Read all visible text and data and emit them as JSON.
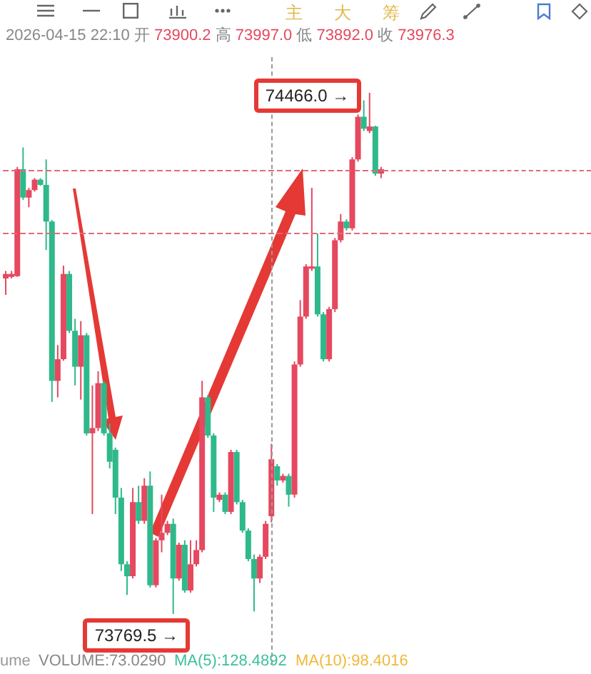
{
  "chart_data": {
    "type": "candlestick",
    "annotations": [
      "2026-04-15 22:10 开 73900.2 高 73997.0 低 73892.0 收 73976.3",
      "主",
      "大",
      "筹",
      "74466.0 →",
      "73769.5 →",
      "ume",
      "VOLUME:73.0290",
      "MA(5):128.4892",
      "MA(10):98.4016"
    ],
    "categories": [
      null,
      null,
      null,
      null,
      null,
      null,
      null,
      null,
      null,
      null,
      null,
      null,
      null,
      null,
      null,
      null,
      null,
      null,
      null,
      null,
      null,
      null,
      null,
      null,
      null,
      null,
      null,
      null,
      null,
      null,
      null,
      null,
      null,
      null,
      null,
      null,
      null,
      null,
      null,
      null,
      null,
      null,
      null,
      null,
      null,
      null,
      null,
      null,
      null,
      null,
      null,
      null,
      null,
      null,
      null,
      null,
      null,
      null,
      null,
      null,
      null,
      null,
      null,
      null,
      null,
      null
    ],
    "ohlc": [
      [
        74218,
        74228,
        74196,
        74224
      ],
      [
        74220,
        74228,
        74218,
        74224
      ],
      [
        74221,
        74367,
        74220,
        74364
      ],
      [
        74364,
        74393,
        74323,
        74326
      ],
      [
        74326,
        74339,
        74313,
        74336
      ],
      [
        74336,
        74352,
        74334,
        74350
      ],
      [
        74350,
        74352,
        74342,
        74343
      ],
      [
        74343,
        74377,
        74256,
        74294
      ],
      [
        74294,
        74296,
        74053,
        74081
      ],
      [
        74081,
        74129,
        74059,
        74110
      ],
      [
        74110,
        74235,
        74108,
        74224
      ],
      [
        74224,
        74228,
        74145,
        74148
      ],
      [
        74148,
        74164,
        74075,
        74100
      ],
      [
        74100,
        74161,
        74056,
        74142
      ],
      [
        74142,
        74145,
        74008,
        74011
      ],
      [
        74011,
        74075,
        73903,
        74018
      ],
      [
        74018,
        74094,
        74014,
        74078
      ],
      [
        74078,
        74081,
        74008,
        74011
      ],
      [
        74011,
        74024,
        73964,
        73973
      ],
      [
        73989,
        73992,
        73903,
        73925
      ],
      [
        73925,
        73938,
        73827,
        73836
      ],
      [
        73836,
        73840,
        73795,
        73820
      ],
      [
        73820,
        73938,
        73817,
        73919
      ],
      [
        73919,
        73941,
        73890,
        73894
      ],
      [
        73894,
        73951,
        73890,
        73941
      ],
      [
        73941,
        73960,
        73805,
        73808
      ],
      [
        73808,
        73871,
        73805,
        73868
      ],
      [
        73868,
        73929,
        73852,
        73878
      ],
      [
        73878,
        73894,
        73875,
        73890
      ],
      [
        73890,
        73897,
        73769.5,
        73817
      ],
      [
        73817,
        73865,
        73814,
        73862
      ],
      [
        73862,
        73868,
        73798,
        73801
      ],
      [
        73801,
        73868,
        73798,
        73836
      ],
      [
        73836,
        73868,
        73833,
        73855
      ],
      [
        73855,
        74081,
        73852,
        74059
      ],
      [
        74059,
        74062,
        74005,
        74008
      ],
      [
        74008,
        74011,
        73906,
        73925
      ],
      [
        73922,
        73932,
        73919,
        73929
      ],
      [
        73929,
        73932,
        73903,
        73906
      ],
      [
        73906,
        73989,
        73903,
        73986
      ],
      [
        73986,
        73989,
        73916,
        73919
      ],
      [
        73919,
        73922,
        73878,
        73881
      ],
      [
        73881,
        73884,
        73840,
        73843
      ],
      [
        73843,
        73849,
        73773,
        73817
      ],
      [
        73817,
        73849,
        73811,
        73846
      ],
      [
        73846,
        73894,
        73843,
        73890
      ],
      [
        73900.2,
        73997.0,
        73892.0,
        73976.3
      ],
      [
        73967,
        73970,
        73941,
        73948
      ],
      [
        73948,
        73957,
        73945,
        73954
      ],
      [
        73954,
        73957,
        73913,
        73929
      ],
      [
        73929,
        74107,
        73925,
        74103
      ],
      [
        74103,
        74189,
        74100,
        74167
      ],
      [
        74167,
        74237,
        74164,
        74234
      ],
      [
        74231,
        74339,
        74228,
        74234
      ],
      [
        74234,
        74278,
        74167,
        74170
      ],
      [
        74170,
        74173,
        74107,
        74110
      ],
      [
        74110,
        74180,
        74107,
        74177
      ],
      [
        74177,
        74272,
        74173,
        74269
      ],
      [
        74269,
        74304,
        74266,
        74294
      ],
      [
        74294,
        74297,
        74282,
        74285
      ],
      [
        74285,
        74380,
        74282,
        74377
      ],
      [
        74377,
        74437,
        74374,
        74434
      ],
      [
        74434,
        74456,
        74415,
        74418
      ],
      [
        74415,
        74466.0,
        74412,
        74421
      ],
      [
        74421,
        74422,
        74355,
        74358
      ],
      [
        74358,
        74367,
        74352,
        74364
      ]
    ],
    "ref_lines": [
      {
        "axis": "y",
        "value": 74363,
        "color": "#e06a78",
        "line_style": "dashed"
      },
      {
        "axis": "y",
        "value": 74279,
        "color": "#e06a78",
        "line_style": "dashed"
      }
    ],
    "grid": false
  }
}
